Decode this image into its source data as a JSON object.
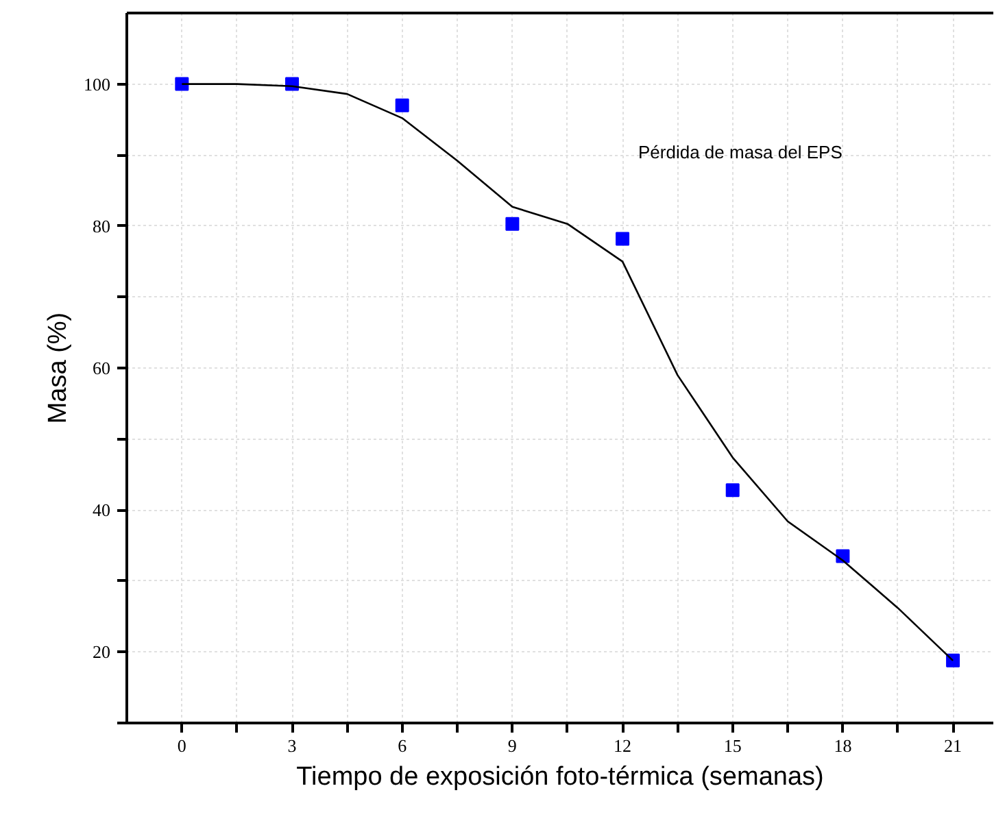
{
  "chart_data": {
    "type": "scatter",
    "xlabel": "Tiempo de exposición foto-térmica (semanas)",
    "ylabel": "Masa (%)",
    "annotations": [
      "Pérdida de masa del EPS"
    ],
    "xlim": [
      -1.5,
      22.1
    ],
    "xticks": [
      0,
      {
        "value": 1.5,
        "label": null
      },
      3,
      {
        "value": 4.5,
        "label": null
      },
      6,
      {
        "value": 7.5,
        "label": null
      },
      9,
      {
        "value": 10.5,
        "label": null
      },
      12,
      {
        "value": 13.5,
        "label": null
      },
      15,
      {
        "value": 16.5,
        "label": null
      },
      18,
      {
        "value": 19.5,
        "label": null
      },
      21
    ],
    "ylim": [
      10,
      110
    ],
    "yticks": [
      {
        "value": 10,
        "label": null
      },
      20,
      {
        "value": 30,
        "label": null
      },
      40,
      {
        "value": 50,
        "label": null
      },
      60,
      {
        "value": 70,
        "label": null
      },
      80,
      {
        "value": 90,
        "label": null
      },
      100
    ],
    "grid": true,
    "marker": "square",
    "series": [
      {
        "color": "#0000ff",
        "x": [
          0,
          3,
          6,
          9,
          12,
          15,
          18,
          21
        ],
        "values": [
          100,
          100,
          97,
          80.3,
          78.2,
          42.8,
          33.5,
          18.8
        ]
      },
      {
        "type": "line",
        "color": "#000000",
        "marker": "none",
        "x": [
          0,
          1.5,
          3,
          4.5,
          6,
          7.5,
          9,
          10.5,
          12,
          13.5,
          15,
          16.5,
          18,
          19.5,
          21
        ],
        "values": [
          100,
          100,
          99.7,
          98.6,
          95.2,
          89.2,
          82.7,
          80.3,
          75,
          59,
          47.4,
          38.4,
          32.9,
          26.2,
          18.8
        ]
      }
    ]
  }
}
